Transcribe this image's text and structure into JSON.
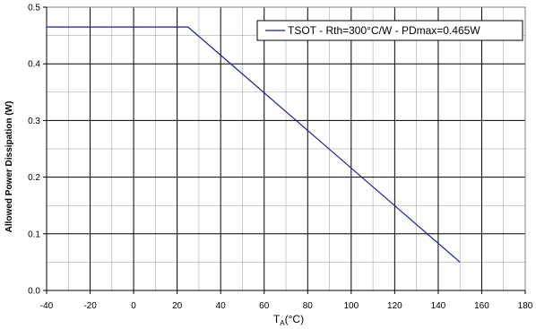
{
  "chart_data": {
    "type": "line",
    "title": "",
    "xlabel": "T",
    "xlabel_sub": "A",
    "xlabel_unit": "(°C)",
    "ylabel": "Allowed Power Dissipation (W)",
    "xlim": [
      -40,
      180
    ],
    "ylim": [
      0,
      0.5
    ],
    "x_ticks": [
      "-40",
      "-20",
      "0",
      "20",
      "40",
      "60",
      "80",
      "100",
      "120",
      "140",
      "160",
      "180"
    ],
    "y_ticks": [
      "0.0",
      "0.1",
      "0.2",
      "0.3",
      "0.4",
      "0.5"
    ],
    "grid": true,
    "legend_position": "top-right",
    "series": [
      {
        "name": "TSOT - Rth=300°C/W - PDmax=0.465W",
        "color": "#1f1f8f",
        "x": [
          -40,
          25,
          150
        ],
        "y": [
          0.465,
          0.465,
          0.05
        ]
      }
    ]
  }
}
